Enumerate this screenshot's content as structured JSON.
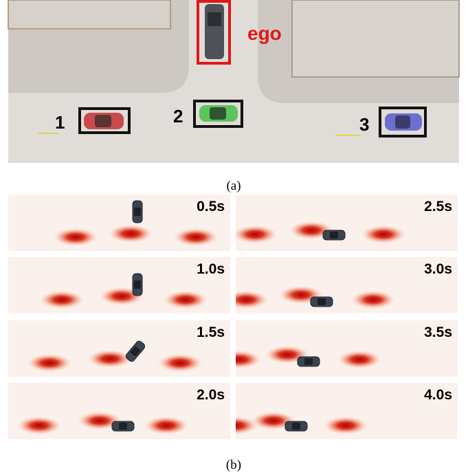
{
  "figure_a": {
    "ego_label": "ego",
    "vehicle_labels": [
      "1",
      "2",
      "3"
    ],
    "caption": "(a)"
  },
  "figure_b": {
    "panels": [
      "0.5s",
      "1.0s",
      "1.5s",
      "2.0s",
      "2.5s",
      "3.0s",
      "3.5s",
      "4.0s"
    ],
    "caption": "(b)"
  }
}
